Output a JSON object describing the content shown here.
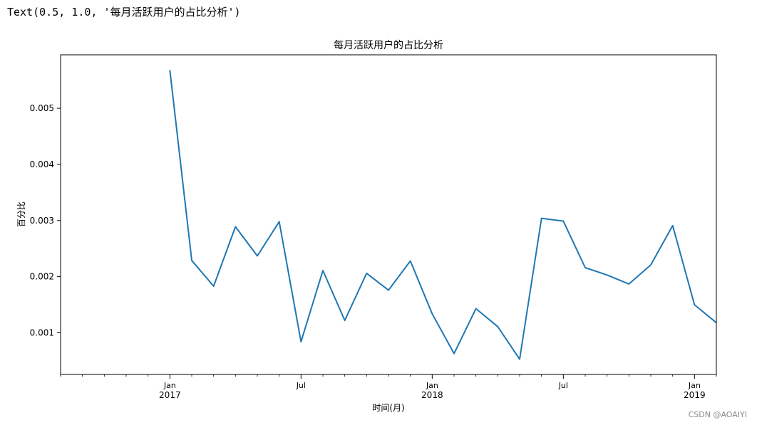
{
  "output_text": "Text(0.5, 1.0, '每月活跃用户的占比分析')",
  "watermark": "CSDN @AOAIYI",
  "chart_data": {
    "type": "line",
    "title": "每月活跃用户的占比分析",
    "xlabel": "时间(月)",
    "ylabel": "百分比",
    "x": [
      "2017-01",
      "2017-02",
      "2017-03",
      "2017-04",
      "2017-05",
      "2017-06",
      "2017-07",
      "2017-08",
      "2017-09",
      "2017-10",
      "2017-11",
      "2017-12",
      "2018-01",
      "2018-02",
      "2018-03",
      "2018-04",
      "2018-05",
      "2018-06",
      "2018-07",
      "2018-08",
      "2018-09",
      "2018-10",
      "2018-11",
      "2018-12",
      "2019-01",
      "2019-02"
    ],
    "series": [
      {
        "values": [
          0.00568,
          0.00229,
          0.00183,
          0.00289,
          0.00237,
          0.00298,
          0.00084,
          0.00211,
          0.00122,
          0.00206,
          0.00176,
          0.00228,
          0.00134,
          0.00063,
          0.00143,
          0.00111,
          0.00053,
          0.00304,
          0.00299,
          0.00216,
          0.00203,
          0.00187,
          0.00221,
          0.00291,
          0.0015,
          0.00118
        ],
        "color": "#1f77b4"
      }
    ],
    "yticks": [
      "0.001",
      "0.002",
      "0.003",
      "0.004",
      "0.005"
    ],
    "ytick_values": [
      0.001,
      0.002,
      0.003,
      0.004,
      0.005
    ],
    "ylim": [
      0.000258,
      0.005952
    ],
    "xlim": [
      "2016-08",
      "2019-02"
    ],
    "xticks": [
      {
        "at": "2017-01",
        "label": "Jan",
        "year": "2017"
      },
      {
        "at": "2017-07",
        "label": "Jul",
        "year": ""
      },
      {
        "at": "2018-01",
        "label": "Jan",
        "year": "2018"
      },
      {
        "at": "2018-07",
        "label": "Jul",
        "year": ""
      },
      {
        "at": "2019-01",
        "label": "Jan",
        "year": "2019"
      }
    ],
    "grid": false
  }
}
